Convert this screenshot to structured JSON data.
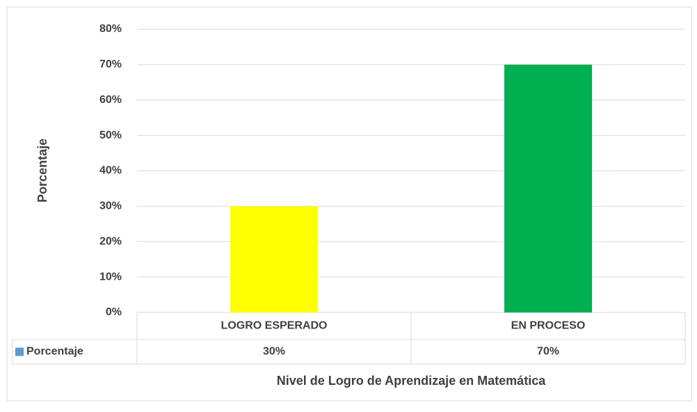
{
  "chart_data": {
    "type": "bar",
    "x_axis_label": "Nivel de Logro de Aprendizaje en Matemática",
    "y_axis_label": "Porcentaje",
    "categories": [
      "LOGRO ESPERADO",
      "EN PROCESO"
    ],
    "series": [
      {
        "name": "Porcentaje",
        "color": "#5b9bd5",
        "point_colors": [
          "#ffff00",
          "#00b050"
        ],
        "values": [
          30,
          70
        ],
        "value_labels": [
          "30%",
          "70%"
        ]
      }
    ],
    "ylim": [
      0,
      80
    ],
    "yticks": [
      {
        "value": 0,
        "label": "0%"
      },
      {
        "value": 10,
        "label": "10%"
      },
      {
        "value": 20,
        "label": "20%"
      },
      {
        "value": 30,
        "label": "30%"
      },
      {
        "value": 40,
        "label": "40%"
      },
      {
        "value": 50,
        "label": "50%"
      },
      {
        "value": 60,
        "label": "60%"
      },
      {
        "value": 70,
        "label": "70%"
      },
      {
        "value": 80,
        "label": "80%"
      }
    ],
    "grid": true
  }
}
